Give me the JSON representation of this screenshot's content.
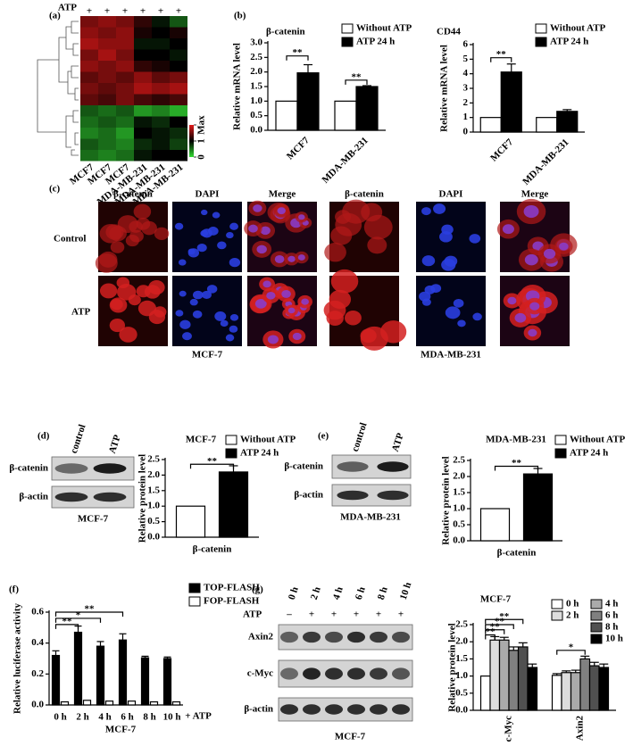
{
  "panel_labels": [
    "(a)",
    "(b)",
    "(c)",
    "(d)",
    "(e)",
    "(f)",
    "(g)"
  ],
  "chart_data": [
    {
      "type": "heatmap",
      "column_header": "ATP",
      "column_marks": [
        "+",
        "+",
        "+",
        "+",
        "+",
        "+"
      ],
      "categories": [
        "MCF7",
        "MCF7",
        "MCF7",
        "MDA-MB-231",
        "MDA-MB-231",
        "MDA-MB-231"
      ],
      "values": [
        [
          1.5,
          1.6,
          1.5,
          1.2,
          0.9,
          0.6
        ],
        [
          1.6,
          1.5,
          1.6,
          1.1,
          1.0,
          1.1
        ],
        [
          1.7,
          1.6,
          1.6,
          0.9,
          0.9,
          1.0
        ],
        [
          1.5,
          1.7,
          1.5,
          1.0,
          1.0,
          0.9
        ],
        [
          1.6,
          1.5,
          1.6,
          1.2,
          1.1,
          1.0
        ],
        [
          1.4,
          1.5,
          1.4,
          1.6,
          1.4,
          1.5
        ],
        [
          1.5,
          1.4,
          1.5,
          1.7,
          1.6,
          1.7
        ],
        [
          1.4,
          1.3,
          1.5,
          1.3,
          1.2,
          1.3
        ],
        [
          0.6,
          0.5,
          0.6,
          0.3,
          0.4,
          0.2
        ],
        [
          0.5,
          0.6,
          0.5,
          0.9,
          0.8,
          1.0
        ],
        [
          0.4,
          0.5,
          0.3,
          1.0,
          0.9,
          0.8
        ],
        [
          0.6,
          0.5,
          0.4,
          0.8,
          0.9,
          0.7
        ],
        [
          0.5,
          0.4,
          0.5,
          0.9,
          1.0,
          1.0
        ]
      ],
      "zlim": [
        0,
        2
      ],
      "colorbar_ticks": [
        0,
        1,
        {
          "value": 2,
          "label": "Max"
        }
      ]
    },
    {
      "type": "bar",
      "title": "β-catenin",
      "ylabel": "Relative mRNA level",
      "categories": [
        "MCF7",
        "MDA-MB-231"
      ],
      "series": [
        {
          "name": "Without ATP",
          "color": "#ffffff",
          "values": [
            1.0,
            1.0
          ]
        },
        {
          "name": "ATP 24 h",
          "color": "#000000",
          "values": [
            1.97,
            1.5
          ],
          "errors": [
            0.28,
            0.03
          ]
        }
      ],
      "ylim": [
        0,
        3
      ],
      "yticks": [
        {
          "value": 0,
          "label": "0.0"
        },
        {
          "value": 0.5,
          "label": "0.5"
        },
        {
          "value": 1,
          "label": "1.0"
        },
        {
          "value": 1.5,
          "label": "1.5"
        },
        {
          "value": 2,
          "label": "2.0"
        },
        {
          "value": 2.5,
          "label": "2.5"
        },
        {
          "value": 3,
          "label": "3.0"
        }
      ],
      "annotations": [
        "**",
        "**"
      ]
    },
    {
      "type": "bar",
      "title": "CD44",
      "ylabel": "Relative mRNA level",
      "categories": [
        "MCF7",
        "MDA-MB-231"
      ],
      "series": [
        {
          "name": "Without ATP",
          "color": "#ffffff",
          "values": [
            1.0,
            1.0
          ]
        },
        {
          "name": "ATP 24 h",
          "color": "#000000",
          "values": [
            4.12,
            1.42
          ],
          "errors": [
            0.55,
            0.12
          ]
        }
      ],
      "ylim": [
        0,
        6
      ],
      "yticks": [
        0,
        1,
        2,
        3,
        4,
        5,
        6
      ],
      "annotations": [
        "**"
      ]
    },
    {
      "type": "bar",
      "title": "MCF-7",
      "ylabel": "Relative protein level",
      "categories": [
        "β-catenin"
      ],
      "series": [
        {
          "name": "Without ATP",
          "color": "#ffffff",
          "values": [
            1.0
          ]
        },
        {
          "name": "ATP 24 h",
          "color": "#000000",
          "values": [
            2.1
          ],
          "errors": [
            0.2
          ]
        }
      ],
      "ylim": [
        0,
        2.5
      ],
      "yticks": [
        {
          "value": 0,
          "label": "0.0"
        },
        {
          "value": 0.5,
          "label": "0.5"
        },
        {
          "value": 1,
          "label": "1.0"
        },
        {
          "value": 1.5,
          "label": "1.5"
        },
        {
          "value": 2,
          "label": "2.0"
        },
        {
          "value": 2.5,
          "label": "2.5"
        }
      ],
      "annotations": [
        "**"
      ]
    },
    {
      "type": "bar",
      "title": "MDA-MB-231",
      "ylabel": "Relative protein level",
      "categories": [
        "β-catenin"
      ],
      "series": [
        {
          "name": "Without ATP",
          "color": "#ffffff",
          "values": [
            1.0
          ]
        },
        {
          "name": "ATP 24 h",
          "color": "#000000",
          "values": [
            2.08
          ],
          "errors": [
            0.17
          ]
        }
      ],
      "ylim": [
        0,
        2.5
      ],
      "yticks": [
        {
          "value": 0,
          "label": "0.0"
        },
        {
          "value": 0.5,
          "label": "0.5"
        },
        {
          "value": 1,
          "label": "1.0"
        },
        {
          "value": 1.5,
          "label": "1.5"
        },
        {
          "value": 2,
          "label": "2.0"
        },
        {
          "value": 2.5,
          "label": "2.5"
        }
      ],
      "annotations": [
        "**"
      ]
    },
    {
      "type": "bar",
      "ylabel": "Relative luciferase activity",
      "xlabel": "MCF-7",
      "note": "+ ATP",
      "categories": [
        "0 h",
        "2 h",
        "4 h",
        "6 h",
        "8 h",
        "10 h"
      ],
      "series": [
        {
          "name": "TOP-FLASH",
          "color": "#000000",
          "values": [
            0.32,
            0.47,
            0.38,
            0.42,
            0.305,
            0.3
          ],
          "errors": [
            0.03,
            0.04,
            0.03,
            0.04,
            0.01,
            0.01
          ]
        },
        {
          "name": "FOP-FLASH",
          "color": "#ffffff",
          "values": [
            0.02,
            0.03,
            0.025,
            0.025,
            0.02,
            0.02
          ]
        }
      ],
      "ylim": [
        0,
        0.6
      ],
      "yticks": [
        {
          "value": 0,
          "label": "0.0"
        },
        {
          "value": 0.2,
          "label": "0.2"
        },
        {
          "value": 0.4,
          "label": "0.4"
        },
        {
          "value": 0.6,
          "label": "0.6"
        }
      ],
      "annotations": [
        "**",
        "*",
        "**"
      ]
    },
    {
      "type": "bar",
      "title": "MCF-7",
      "ylabel": "Relative protein level",
      "categories": [
        "c-Myc",
        "Axin2"
      ],
      "series": [
        {
          "name": "0 h",
          "color": "#ffffff",
          "values": [
            1.0,
            1.02
          ],
          "errors": [
            0,
            0.05
          ]
        },
        {
          "name": "2 h",
          "color": "#dddddd",
          "values": [
            2.05,
            1.1
          ],
          "errors": [
            0.1,
            0.05
          ]
        },
        {
          "name": "4 h",
          "color": "#aaaaaa",
          "values": [
            2.05,
            1.1
          ],
          "errors": [
            0.08,
            0.07
          ]
        },
        {
          "name": "6 h",
          "color": "#808080",
          "values": [
            1.75,
            1.5
          ],
          "errors": [
            0.1,
            0.08
          ]
        },
        {
          "name": "8 h",
          "color": "#505050",
          "values": [
            1.85,
            1.3
          ],
          "errors": [
            0.12,
            0.1
          ]
        },
        {
          "name": "10 h",
          "color": "#000000",
          "values": [
            1.25,
            1.25
          ],
          "errors": [
            0.1,
            0.1
          ]
        }
      ],
      "ylim": [
        0,
        2.5
      ],
      "yticks": [
        {
          "value": 0,
          "label": "0.0"
        },
        {
          "value": 0.5,
          "label": "0.5"
        },
        {
          "value": 1,
          "label": "1.0"
        },
        {
          "value": 1.5,
          "label": "1.5"
        },
        {
          "value": 2,
          "label": "2.0"
        },
        {
          "value": 2.5,
          "label": "2.5"
        }
      ],
      "annotations": [
        "**",
        "**",
        "**",
        "**",
        "*"
      ]
    }
  ],
  "micrographs": {
    "columns": [
      "β-catenin",
      "DAPI",
      "Merge",
      "β-catenin",
      "DAPI",
      "Merge"
    ],
    "rows": [
      "Control",
      "ATP"
    ],
    "cell_lines": [
      "MCF-7",
      "MDA-MB-231"
    ]
  },
  "blots": [
    {
      "lanes": [
        "control",
        "ATP"
      ],
      "rows": [
        "β-catenin",
        "β-actin"
      ],
      "caption": "MCF-7"
    },
    {
      "lanes": [
        "control",
        "ATP"
      ],
      "rows": [
        "β-catenin",
        "β-actin"
      ],
      "caption": "MDA-MB-231"
    },
    {
      "lanes": [
        "0 h",
        "2 h",
        "4 h",
        "6 h",
        "8 h",
        "10 h"
      ],
      "treatment": "ATP",
      "treatment_marks": [
        "–",
        "+",
        "+",
        "+",
        "+",
        "+"
      ],
      "rows": [
        "Axin2",
        "c-Myc",
        "β-actin"
      ],
      "caption": "MCF-7"
    }
  ]
}
